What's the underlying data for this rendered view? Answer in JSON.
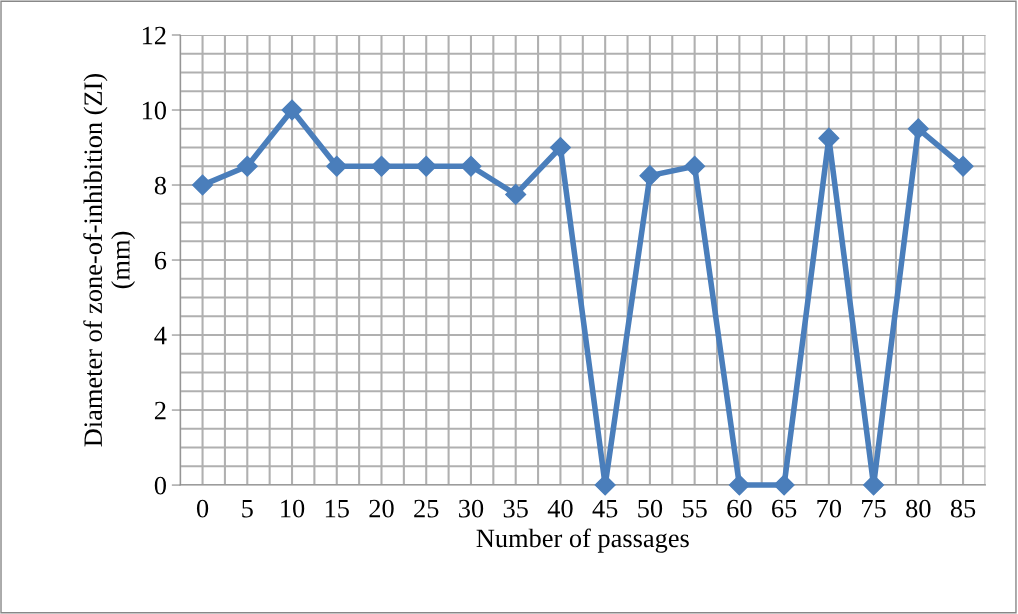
{
  "chart_data": {
    "type": "line",
    "xlabel": "Number of passages",
    "ylabel": "Diameter of zone-of-inhibition (ZI)\n(mm)",
    "categories": [
      "0",
      "5",
      "10",
      "15",
      "20",
      "25",
      "30",
      "35",
      "40",
      "45",
      "50",
      "55",
      "60",
      "65",
      "70",
      "75",
      "80",
      "85"
    ],
    "series": [
      {
        "color": "#4a7ebb",
        "values": [
          8,
          8.5,
          10,
          8.5,
          8.5,
          8.5,
          8.5,
          7.75,
          9,
          0,
          8.25,
          8.5,
          0,
          0,
          9.25,
          0,
          9.5,
          8.5
        ]
      }
    ],
    "ylim": [
      0,
      12
    ],
    "yticks": [
      0,
      2,
      4,
      6,
      8,
      10,
      12
    ],
    "grid": true,
    "marker": "diamond",
    "line_style": "solid",
    "legend": false
  }
}
